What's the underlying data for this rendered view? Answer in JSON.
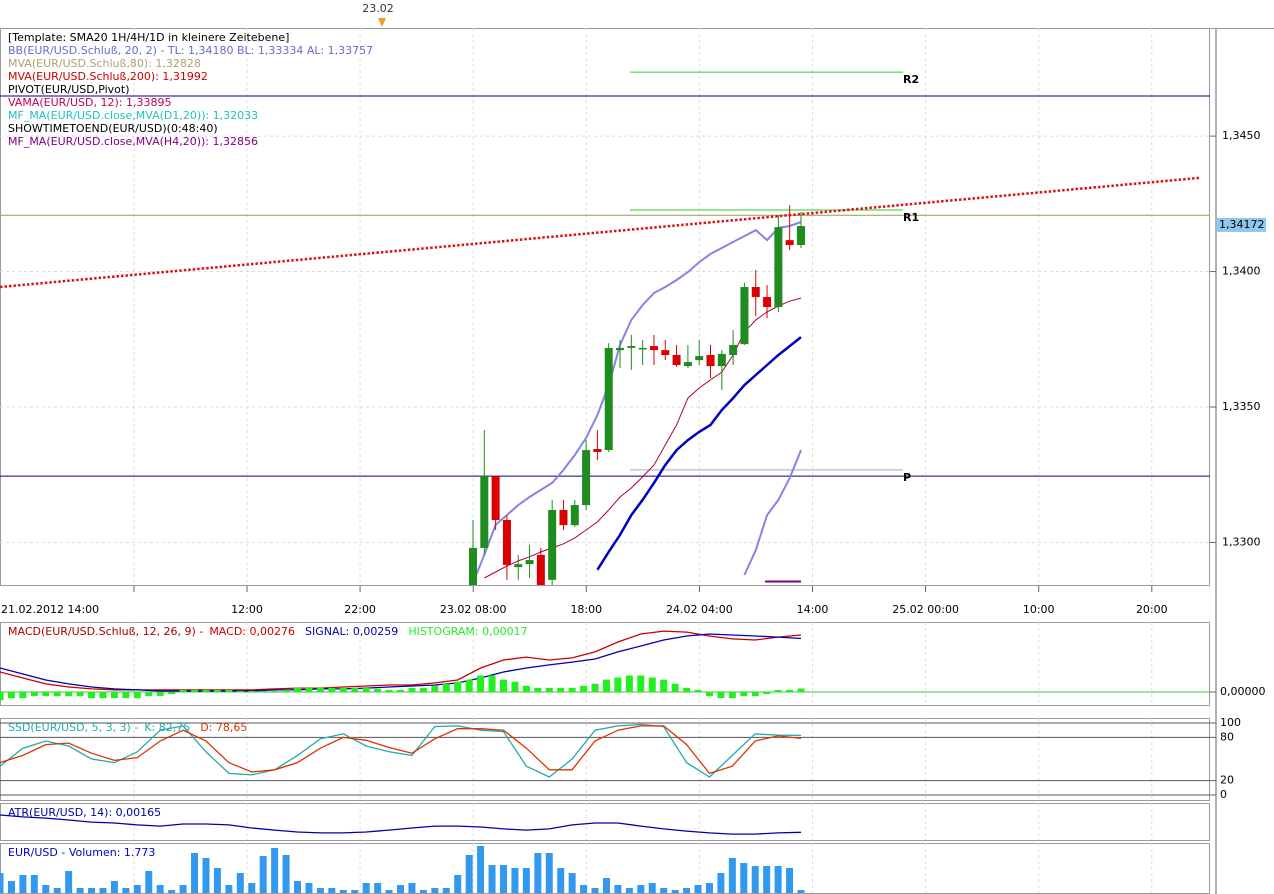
{
  "chart_data": [
    {
      "type": "candlestick",
      "marker": "23.02",
      "title": "[Template: SMA20 1H/4H/1D in kleinere Zeitebene]",
      "indicators": [
        {
          "name": "BB(EUR/USD.Schluß, 20, 2) -  TL: 1,34180   BL: 1,33334   AL: 1,33757",
          "color": "#6a6ad0"
        },
        {
          "name": "MVA(EUR/USD.Schluß,80): 1,32828",
          "color": "#b0a070"
        },
        {
          "name": "MVA(EUR/USD.Schluß,200): 1,31992",
          "color": "#cc0000"
        },
        {
          "name": "PIVOT(EUR/USD,Pivot)",
          "color": "#000000"
        },
        {
          "name": "VAMA(EUR/USD, 12): 1,33895",
          "color": "#c0005a"
        },
        {
          "name": "MF_MA(EUR/USD.close,MVA(D1,20)): 1,32033",
          "color": "#20c0c0"
        },
        {
          "name": "SHOWTIMETOEND(EUR/USD)(0:48:40)",
          "color": "#000000"
        },
        {
          "name": "MF_MA(EUR/USD.close,MVA(H4,20)): 1,32856",
          "color": "#800080"
        }
      ],
      "open": [
        1.3282,
        1.3298,
        1.33245,
        1.33083,
        1.32909,
        1.3292,
        1.32954,
        1.32862,
        1.3312,
        1.33064,
        1.33138,
        1.33345,
        1.33341,
        1.3371,
        1.33718,
        1.33718,
        1.33725,
        1.3371,
        1.33692,
        1.33651,
        1.33673,
        1.33692,
        1.33651,
        1.33692,
        1.33732,
        1.33943,
        1.33906,
        1.33869,
        1.34116,
        1.34098
      ],
      "high": [
        1.33083,
        1.33415,
        1.33245,
        1.33101,
        1.32954,
        1.32991,
        1.3298,
        1.33157,
        1.33157,
        1.33157,
        1.33378,
        1.33415,
        1.33736,
        1.33747,
        1.33766,
        1.33747,
        1.33766,
        1.33747,
        1.33729,
        1.33729,
        1.33747,
        1.33729,
        1.3371,
        1.33784,
        1.33958,
        1.34006,
        1.3395,
        1.34208,
        1.34245,
        1.3422
      ],
      "low": [
        1.328,
        1.32954,
        1.33046,
        1.32862,
        1.32862,
        1.32869,
        1.328,
        1.3282,
        1.33046,
        1.33057,
        1.3312,
        1.33304,
        1.33334,
        1.33644,
        1.33637,
        1.33655,
        1.33655,
        1.33673,
        1.33648,
        1.33644,
        1.33655,
        1.33607,
        1.33563,
        1.33655,
        1.33729,
        1.33836,
        1.33828,
        1.3385,
        1.34079,
        1.34087
      ],
      "close": [
        1.3298,
        1.33245,
        1.33083,
        1.32917,
        1.3292,
        1.32935,
        1.3282,
        1.3312,
        1.33064,
        1.33138,
        1.33341,
        1.33334,
        1.33718,
        1.33718,
        1.33725,
        1.33718,
        1.3371,
        1.33692,
        1.33655,
        1.33666,
        1.33688,
        1.33651,
        1.33696,
        1.33729,
        1.33943,
        1.33906,
        1.33869,
        1.34164,
        1.34098,
        1.34168
      ],
      "up_color": "#1e8c1e",
      "down_color": "#dd0000",
      "overlays": [
        {
          "color": "#8484e4",
          "width": 2,
          "values": [
            1.32851,
            1.32954,
            1.33065,
            1.33101,
            1.33138,
            1.33168,
            1.33194,
            1.3322,
            1.33268,
            1.33323,
            1.33386,
            1.3347,
            1.33581,
            1.33729,
            1.33821,
            1.33876,
            1.33921,
            1.33943,
            1.33969,
            1.33998,
            1.34035,
            1.34065,
            1.34087,
            1.34109,
            1.34131,
            1.34153,
            1.34116,
            1.34161,
            1.34168,
            1.34183
          ]
        },
        {
          "color": "#8484e4",
          "width": 2,
          "values": [
            null,
            null,
            null,
            null,
            null,
            null,
            null,
            null,
            null,
            null,
            null,
            null,
            null,
            null,
            null,
            null,
            null,
            null,
            null,
            null,
            null,
            null,
            null,
            null,
            1.3288,
            1.32972,
            1.33101,
            1.33157,
            1.33238,
            1.33341
          ]
        },
        {
          "color": "#b0003a",
          "width": 1,
          "values": [
            null,
            1.32869,
            1.32891,
            1.32913,
            1.32932,
            1.32947,
            1.32965,
            1.3298,
            1.32995,
            1.33017,
            1.33046,
            1.33076,
            1.3312,
            1.33168,
            1.33201,
            1.33242,
            1.33286,
            1.3336,
            1.33434,
            1.33533,
            1.3357,
            1.336,
            1.33629,
            1.33692,
            1.33777,
            1.33821,
            1.33851,
            1.33873,
            1.33891,
            1.33902
          ]
        },
        {
          "color": "#0000c0",
          "width": 2.5,
          "values": [
            null,
            null,
            null,
            null,
            null,
            null,
            null,
            null,
            null,
            null,
            null,
            1.32899,
            1.32965,
            1.33028,
            1.33101,
            1.33157,
            1.3322,
            1.33286,
            1.33341,
            1.33378,
            1.33408,
            1.33434,
            1.33489,
            1.33533,
            1.33581,
            1.33618,
            1.33655,
            1.33692,
            1.33725,
            1.33758
          ]
        }
      ],
      "hlines": [
        {
          "value": 1.34648,
          "color": "#000080"
        },
        {
          "value": 1.33245,
          "color": "#000080"
        },
        {
          "value": 1.34208,
          "color": "#9a9a50"
        }
      ],
      "pivots": [
        {
          "label": "R2",
          "value": 1.34736,
          "color": "#33cc33"
        },
        {
          "label": "R1",
          "value": 1.34227,
          "color": "#33cc33"
        },
        {
          "label": "P",
          "value": 1.33268,
          "color": "#aaaaaa"
        }
      ],
      "segments": [
        {
          "value": 1.32856,
          "color": "#800080"
        }
      ],
      "trendline": {
        "values": [
          1.33943,
          1.34346
        ],
        "color": "#dd1111"
      },
      "last_price": {
        "value": 1.34172,
        "label": "1,34172"
      },
      "ylim": [
        1.32843,
        1.34899
      ],
      "yticks": [
        {
          "value": 1.345,
          "label": "1,3450"
        },
        {
          "value": 1.34,
          "label": "1,3400"
        },
        {
          "value": 1.335,
          "label": "1,3350"
        },
        {
          "value": 1.33,
          "label": "1,3300"
        }
      ],
      "xticks": [
        "21.02.2012 14:00",
        "12:00",
        "22:00",
        "23.02 08:00",
        "18:00",
        "24.02 04:00",
        "14:00",
        "25.02 00:00",
        "10:00",
        "20:00"
      ],
      "grid": true,
      "grid_color": "#dcdcdc"
    },
    {
      "type": "combo",
      "title": "MACD(EUR/USD.Schluß, 12, 26, 9) - ",
      "title_color": "#aa0000",
      "series": [
        {
          "name": "MACD: 0,00276",
          "color": "#cc0000",
          "style": "line",
          "values": [
            0.00097,
            0.00068,
            0.00039,
            0.00024,
            0.00015,
            0.0001,
            0.0001,
            0.0001,
            0.0001,
            0.0001,
            0.0001,
            0.0001,
            0.00015,
            0.00019,
            0.00019,
            0.00024,
            0.00029,
            0.00034,
            0.00034,
            0.00044,
            0.00058,
            0.00116,
            0.00155,
            0.00169,
            0.00155,
            0.00165,
            0.00194,
            0.00242,
            0.00281,
            0.00295,
            0.0029,
            0.00271,
            0.00257,
            0.00252,
            0.00266,
            0.00276
          ]
        },
        {
          "name": "SIGNAL: 0,00259",
          "color": "#0000aa",
          "style": "line",
          "values": [
            0.00116,
            0.00087,
            0.00058,
            0.00039,
            0.00024,
            0.00015,
            0.0001,
            5e-05,
            5e-05,
            5e-05,
            5e-05,
            5e-05,
            0.0001,
            0.0001,
            0.00015,
            0.00015,
            0.00019,
            0.00024,
            0.00029,
            0.00034,
            0.00044,
            0.00068,
            0.00097,
            0.00116,
            0.00131,
            0.00145,
            0.0016,
            0.00194,
            0.00223,
            0.00252,
            0.00271,
            0.00281,
            0.00276,
            0.00271,
            0.00266,
            0.00259
          ]
        },
        {
          "name": "HISTOGRAM: 0,00017",
          "color": "#22ee22",
          "style": "bar",
          "values": [
            -0.0004,
            -0.0003,
            -0.0003,
            -0.0002,
            -0.0002,
            -0.0002,
            -0.0002,
            -0.0002,
            -0.0003,
            -0.0003,
            -0.0003,
            -0.0003,
            -0.0003,
            -0.0002,
            -0.0002,
            -0.0001,
            0.0001,
            0.0001,
            0.0001,
            0.0001,
            0.0001,
            5e-05,
            5e-05,
            5e-05,
            5e-05,
            0.0001,
            0.0002,
            0.0002,
            0.0002,
            0.0002,
            0.0002,
            0.0002,
            0.0002,
            0.00015,
            0.0001,
            0.0001,
            0.0002,
            0.0002,
            0.0003,
            0.0004,
            0.0005,
            0.0006,
            0.0008,
            0.0008,
            0.0006,
            0.0005,
            0.0003,
            0.0002,
            0.0002,
            0.0002,
            0.0002,
            0.0003,
            0.0004,
            0.0006,
            0.0007,
            0.0008,
            0.0008,
            0.0007,
            0.0006,
            0.0004,
            0.0002,
            0.0001,
            -0.0002,
            -0.0003,
            -0.0003,
            -0.0002,
            -0.0002,
            -0.0001,
            0.0001,
            0.0001,
            0.00017
          ]
        }
      ],
      "ylim": [
        -0.00063,
        0.00339
      ],
      "yticks": [
        {
          "value": 0,
          "label": "0,00000"
        }
      ],
      "grid_color": "#33cc33"
    },
    {
      "type": "line",
      "title": "SSD(EUR/USD, 5, 3, 3) - ",
      "title_color": "#22aaaa",
      "series": [
        {
          "name": "K: 82,75",
          "color": "#22aaaa",
          "style": "line",
          "values": [
            40,
            65,
            75,
            68,
            50,
            45,
            60,
            90,
            96,
            60,
            30,
            28,
            35,
            55,
            78,
            85,
            68,
            60,
            55,
            95,
            96,
            90,
            88,
            40,
            25,
            50,
            90,
            96,
            98,
            95,
            45,
            25,
            55,
            85,
            83,
            82.75
          ]
        },
        {
          "name": "D: 78,65",
          "color": "#dd3300",
          "style": "line",
          "values": [
            45,
            55,
            70,
            72,
            58,
            48,
            52,
            75,
            90,
            75,
            45,
            32,
            35,
            45,
            65,
            80,
            76,
            66,
            58,
            78,
            92,
            92,
            90,
            65,
            35,
            35,
            75,
            90,
            96,
            96,
            70,
            30,
            40,
            75,
            82,
            78.65
          ]
        }
      ],
      "ylim": [
        -6.9,
        106.9
      ],
      "yticks": [
        100,
        80,
        20,
        0
      ],
      "grid_color": "#555555"
    },
    {
      "type": "line",
      "title": "ATR(EUR/USD, 14): 0,00165",
      "title_color": "#0000aa",
      "series": [
        {
          "color": "#0000aa",
          "style": "line",
          "values": [
            0.00221,
            0.00215,
            0.00211,
            0.00205,
            0.00198,
            0.00195,
            0.00189,
            0.00185,
            0.00192,
            0.00192,
            0.00189,
            0.00179,
            0.00172,
            0.00166,
            0.00163,
            0.00163,
            0.00166,
            0.00172,
            0.00179,
            0.00185,
            0.00185,
            0.00182,
            0.00176,
            0.00172,
            0.00176,
            0.00189,
            0.00195,
            0.00195,
            0.00185,
            0.00176,
            0.00169,
            0.00163,
            0.00159,
            0.00159,
            0.00163,
            0.00165
          ]
        }
      ],
      "ylim": [
        0.0014,
        0.0026
      ]
    },
    {
      "type": "bar",
      "title": "EUR/USD - Volumen: 1.773",
      "title_color": "#0000cc",
      "series": [
        {
          "color": "#3399ee",
          "style": "bar",
          "values": [
            12000,
            7200,
            10800,
            10800,
            4800,
            3000,
            13200,
            3000,
            3000,
            3000,
            7200,
            3000,
            4800,
            13200,
            4800,
            1800,
            4800,
            24000,
            21000,
            15000,
            4800,
            12000,
            6000,
            22200,
            27000,
            22800,
            7200,
            6000,
            3000,
            3000,
            1800,
            1800,
            6000,
            6000,
            1800,
            4800,
            6000,
            1800,
            3000,
            3000,
            10800,
            22800,
            28200,
            16800,
            16800,
            15000,
            15000,
            24000,
            24000,
            15000,
            12000,
            4800,
            3000,
            9000,
            4800,
            3000,
            4800,
            6000,
            3000,
            1800,
            3000,
            4800,
            6000,
            12000,
            21000,
            18000,
            16200,
            16200,
            16200,
            15000,
            1773
          ]
        }
      ],
      "ylim": [
        0,
        30000
      ]
    }
  ]
}
